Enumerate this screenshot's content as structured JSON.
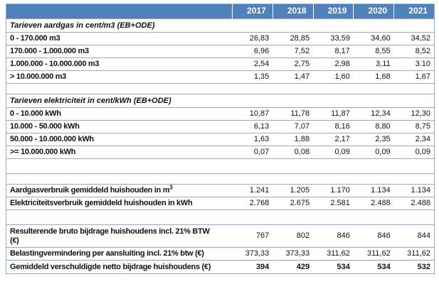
{
  "colors": {
    "header_bg": "#4f81bd",
    "header_text": "#ffffff",
    "border": "#94accb",
    "text": "#111111"
  },
  "chart_data": {
    "type": "table",
    "columns": [
      "",
      "2017",
      "2018",
      "2019",
      "2020",
      "2021"
    ],
    "rows": [
      {
        "type": "section",
        "label": "Tarieven aardgas in cent/m3 (EB+ODE)"
      },
      {
        "type": "data",
        "label": "0 - 170.000 m3",
        "values": [
          "26,83",
          "28,85",
          "33,59",
          "34,60",
          "34,52"
        ]
      },
      {
        "type": "data",
        "label": "170.000 - 1.000.000 m3",
        "values": [
          "6,96",
          "7,52",
          "8,17",
          "8,55",
          "8,52"
        ]
      },
      {
        "type": "data",
        "label": "1.000.000 - 10.000.000 m3",
        "values": [
          "2,54",
          "2,75",
          "2,98",
          "3,11",
          "3.10"
        ]
      },
      {
        "type": "data",
        "label": "> 10.000.000 m3",
        "values": [
          "1,35",
          "1,47",
          "1,60",
          "1,68",
          "1,67"
        ]
      },
      {
        "type": "blank"
      },
      {
        "type": "section",
        "label": "Tarieven elektriciteit in cent/kWh (EB+ODE)"
      },
      {
        "type": "data",
        "label": "0 - 10.000 kWh",
        "values": [
          "10,87",
          "11,78",
          "11,87",
          "12,34",
          "12,30"
        ]
      },
      {
        "type": "data",
        "label": "10.000 - 50.000 kWh",
        "values": [
          "6,13",
          "7,07",
          "8,16",
          "8,80",
          "8,75"
        ]
      },
      {
        "type": "data",
        "label": "50.000 - 10.000.000 kWh",
        "values": [
          "1,63",
          "1,88",
          "2,17",
          "2,35",
          "2,34"
        ]
      },
      {
        "type": "data",
        "label": ">= 10.000.000 kWh",
        "values": [
          "0,07",
          "0,08",
          "0,09",
          "0,09",
          "0,09"
        ]
      },
      {
        "type": "blank",
        "tall": true
      },
      {
        "type": "blank"
      },
      {
        "type": "data",
        "label": "Aardgasverbruik gemiddeld huishouden in m",
        "label_sup": "3",
        "values": [
          "1.241",
          "1.205",
          "1.170",
          "1.134",
          "1.134"
        ]
      },
      {
        "type": "data",
        "label": "Elektriciteitsverbruik gemiddeld huishouden in kWh",
        "values": [
          "2.768",
          "2.675",
          "2.581",
          "2.488",
          "2.488"
        ]
      },
      {
        "type": "blank",
        "tall": true
      },
      {
        "type": "data",
        "two_line": true,
        "label": "Resulterende bruto bijdrage huishoudens incl. 21% BTW",
        "label_line2": "(€)",
        "values": [
          "767",
          "802",
          "846",
          "846",
          "844"
        ]
      },
      {
        "type": "data",
        "label": "Belastingvermindering per aansluiting incl. 21% btw (€)",
        "values": [
          "373,33",
          "373,33",
          "311,62",
          "311,62",
          "311,62"
        ]
      },
      {
        "type": "data",
        "bold_values": true,
        "label": "Gemiddeld verschuldigde netto bijdrage huishoudens (€)",
        "values": [
          "394",
          "429",
          "534",
          "534",
          "532"
        ]
      }
    ]
  }
}
